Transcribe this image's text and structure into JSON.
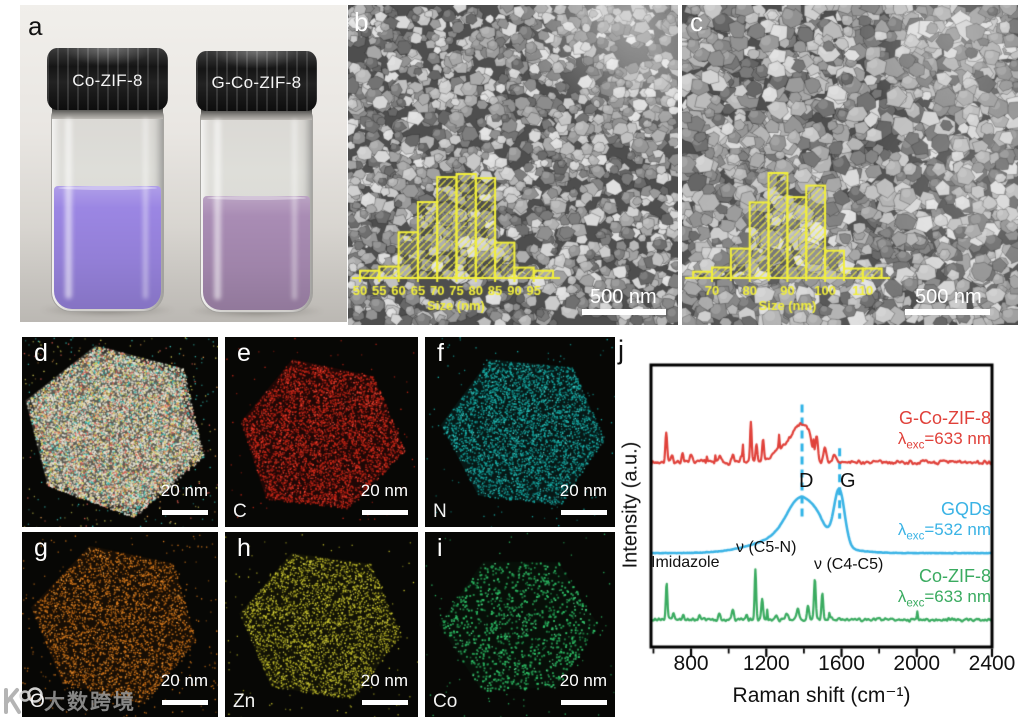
{
  "panel_labels": {
    "a": "a",
    "b": "b",
    "c": "c",
    "d": "d",
    "e": "e",
    "f": "f",
    "g": "g",
    "h": "h",
    "i": "i",
    "j": "j"
  },
  "photo": {
    "vials": [
      {
        "cap_label": "Co-ZIF-8",
        "liquid_color": "#9b86e3"
      },
      {
        "cap_label": "G-Co-ZIF-8",
        "liquid_color": "#a98cb4"
      }
    ]
  },
  "sem": {
    "b": {
      "scale_label": "500 nm"
    },
    "c": {
      "scale_label": "500 nm"
    }
  },
  "eds": {
    "d": {
      "element": "",
      "scale_label": "20 nm",
      "palette": [
        "#e8e6d8",
        "#f0e2b8",
        "#e26054",
        "#38c4ba",
        "#d8d258",
        "#e09a50"
      ]
    },
    "e": {
      "element": "C",
      "scale_label": "20 nm",
      "palette": [
        "#d22818",
        "#ff5040",
        "#8a1410"
      ]
    },
    "f": {
      "element": "N",
      "scale_label": "20 nm",
      "palette": [
        "#18b2ac",
        "#0d7d7a",
        "#5fe0da"
      ]
    },
    "g": {
      "element": "O",
      "scale_label": "20 nm",
      "palette": [
        "#e6821e",
        "#a8570e",
        "#ffb050"
      ]
    },
    "h": {
      "element": "Zn",
      "scale_label": "20 nm",
      "palette": [
        "#cfcb2e",
        "#8f8c18",
        "#e8e45a"
      ]
    },
    "i": {
      "element": "Co",
      "scale_label": "20 nm",
      "palette": [
        "#2ec468",
        "#1d8f4a",
        "#56e08e"
      ]
    }
  },
  "watermark": {
    "text": "大数跨境"
  },
  "chart_data": [
    {
      "type": "bar",
      "inset_of": "panel-b",
      "title": "Size (nm)",
      "color": "#f1ee3d",
      "bin_start_nm": 50,
      "bin_width_nm": 5,
      "tick_labels": [
        "50",
        "55",
        "60",
        "65",
        "70",
        "75",
        "80",
        "85",
        "90",
        "95"
      ],
      "values": [
        0.07,
        0.11,
        0.44,
        0.73,
        0.97,
        1.0,
        0.96,
        0.34,
        0.1,
        0.07
      ]
    },
    {
      "type": "bar",
      "inset_of": "panel-c",
      "title": "Size (nm)",
      "color": "#f1ee3d",
      "bin_start_nm": 65,
      "bin_width_nm": 5,
      "tick_labels": [
        "70",
        "80",
        "90",
        "100",
        "110"
      ],
      "values": [
        0.06,
        0.1,
        0.28,
        0.72,
        1.0,
        0.77,
        0.88,
        0.26,
        0.09,
        0.09
      ]
    },
    {
      "type": "line",
      "xlabel": "Raman shift (cm⁻¹)",
      "ylabel": "Intensity (a.u.)",
      "x_range": [
        587,
        2400
      ],
      "x_ticks": [
        800,
        1200,
        1600,
        2000,
        2400
      ],
      "x_minor_ticks": [
        600,
        1000,
        1400,
        1800,
        2200
      ],
      "marker_color": "#2fb3e6",
      "markers": [
        {
          "label": "D",
          "x": 1390,
          "y0": 0.14,
          "y1": 0.545
        },
        {
          "label": "G",
          "x": 1590,
          "y0": 0.295,
          "y1": 0.545
        }
      ],
      "annotations": [
        {
          "text": "Imidazole"
        },
        {
          "text": "ν (C5-N)"
        },
        {
          "text": "ν (C4-C5)"
        }
      ],
      "series": [
        {
          "name": "G-Co-ZIF-8",
          "lambda": "λ",
          "lambda_sub": "exc",
          "lambda_eq": "=633 nm",
          "color": "#e0413a",
          "baseline": 0.345,
          "noise": 0.011,
          "seed": 7,
          "peaks": [
            [
              668,
              0.105,
              7
            ],
            [
              700,
              0.03,
              7
            ],
            [
              755,
              0.035,
              7
            ],
            [
              800,
              0.02,
              9
            ],
            [
              860,
              0.012,
              10
            ],
            [
              955,
              0.02,
              9
            ],
            [
              1022,
              0.03,
              8
            ],
            [
              1068,
              0.025,
              8
            ],
            [
              1118,
              0.145,
              6
            ],
            [
              1148,
              0.06,
              7
            ],
            [
              1183,
              0.075,
              8
            ],
            [
              1270,
              0.05,
              45
            ],
            [
              1345,
              0.09,
              42
            ],
            [
              1392,
              0.1,
              36
            ],
            [
              1428,
              0.07,
              26
            ],
            [
              1468,
              0.085,
              10
            ],
            [
              1512,
              0.055,
              10
            ],
            [
              1560,
              0.02,
              15
            ]
          ]
        },
        {
          "name": "GQDs",
          "lambda": "λ",
          "lambda_sub": "exc",
          "lambda_eq": "=532 nm",
          "color": "#3ab3e5",
          "baseline": 0.667,
          "noise": 0.0012,
          "seed": 11,
          "peaks": [
            [
              1340,
              0.06,
              260
            ],
            [
              1388,
              0.14,
              105
            ],
            [
              1480,
              0.03,
              50
            ],
            [
              1588,
              0.2,
              40
            ]
          ]
        },
        {
          "name": "Co-ZIF-8",
          "lambda": "λ",
          "lambda_sub": "exc",
          "lambda_eq": "=633 nm",
          "color": "#3aab60",
          "baseline": 0.903,
          "noise": 0.009,
          "seed": 23,
          "peaks": [
            [
              670,
              0.13,
              6
            ],
            [
              705,
              0.02,
              7
            ],
            [
              760,
              0.02,
              7
            ],
            [
              845,
              0.015,
              8
            ],
            [
              950,
              0.022,
              8
            ],
            [
              1022,
              0.038,
              8
            ],
            [
              1095,
              0.015,
              7
            ],
            [
              1142,
              0.18,
              6
            ],
            [
              1178,
              0.075,
              7
            ],
            [
              1255,
              0.015,
              9
            ],
            [
              1310,
              0.022,
              9
            ],
            [
              1368,
              0.042,
              9
            ],
            [
              1422,
              0.048,
              8
            ],
            [
              1458,
              0.145,
              7
            ],
            [
              1498,
              0.095,
              7
            ],
            [
              1540,
              0.012,
              9
            ]
          ]
        }
      ]
    }
  ]
}
